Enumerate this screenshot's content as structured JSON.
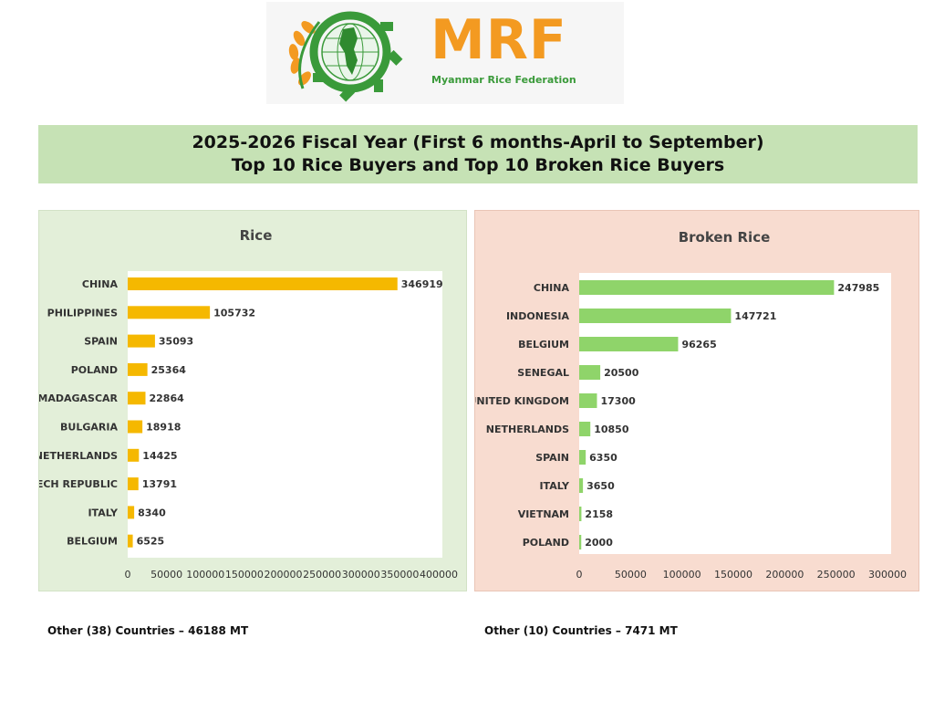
{
  "header": {
    "logo_text": "MRF",
    "logo_subtitle": "Myanmar Rice Federation",
    "title_line1": "2025-2026 Fiscal Year (First 6 months-April to September)",
    "title_line2": "Top 10 Rice Buyers and Top 10 Broken Rice Buyers"
  },
  "colors": {
    "rice_bar": "#f5b800",
    "broken_rice_bar": "#8fd46a",
    "rice_panel": "#e3efd9",
    "broken_rice_panel": "#f8dcd0",
    "banner": "#c6e2b5",
    "logo_orange": "#f39a21",
    "logo_green": "#3a9a3a"
  },
  "chart_data": [
    {
      "type": "bar",
      "orientation": "horizontal",
      "title": "Rice",
      "categories": [
        "CHINA",
        "PHILIPPINES",
        "SPAIN",
        "POLAND",
        "MADAGASCAR",
        "BULGARIA",
        "NETHERLANDS",
        "CZECH REPUBLIC",
        "ITALY",
        "BELGIUM"
      ],
      "values": [
        346919,
        105732,
        35093,
        25364,
        22864,
        18918,
        14425,
        13791,
        8340,
        6525
      ],
      "xlim": [
        0,
        400000
      ],
      "xticks": [
        "0",
        "50000",
        "100000",
        "150000",
        "200000",
        "250000",
        "300000",
        "350000",
        "400000"
      ],
      "grid": false,
      "legend": "none"
    },
    {
      "type": "bar",
      "orientation": "horizontal",
      "title": "Broken Rice",
      "categories": [
        "CHINA",
        "INDONESIA",
        "BELGIUM",
        "SENEGAL",
        "UNITED KINGDOM",
        "NETHERLANDS",
        "SPAIN",
        "ITALY",
        "VIETNAM",
        "POLAND"
      ],
      "values": [
        247985,
        147721,
        96265,
        20500,
        17300,
        10850,
        6350,
        3650,
        2158,
        2000
      ],
      "xlim": [
        0,
        300000
      ],
      "xticks": [
        "0",
        "50000",
        "100000",
        "150000",
        "200000",
        "250000",
        "300000"
      ],
      "grid": false,
      "legend": "none"
    }
  ],
  "notes": {
    "rice_other": "Other (38) Countries –  46188 MT",
    "broken_rice_other": "Other (10) Countries –  7471 MT"
  }
}
